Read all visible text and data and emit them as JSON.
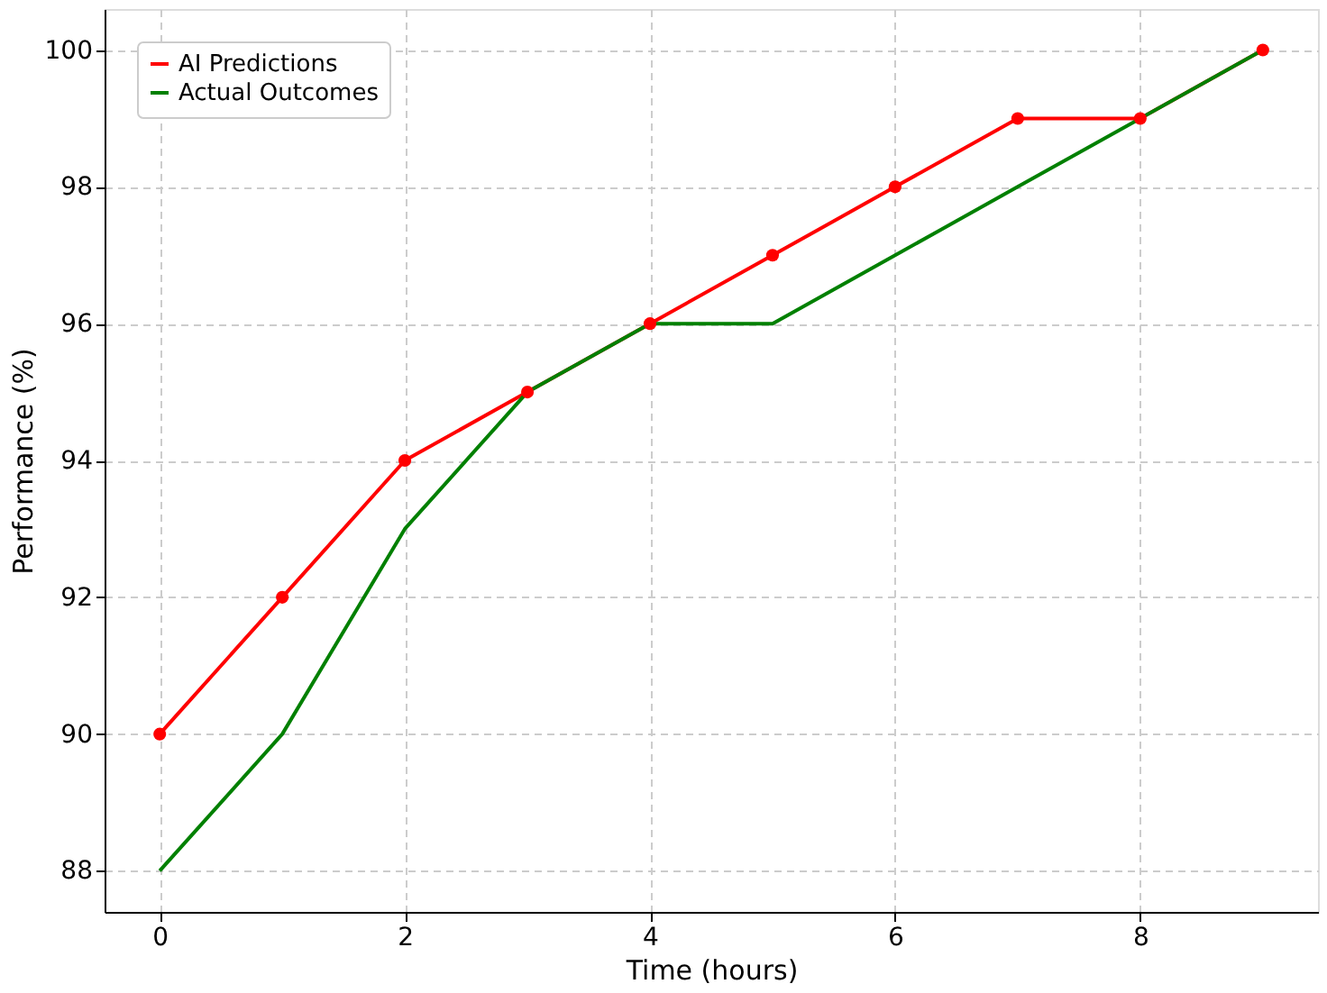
{
  "chart_data": {
    "type": "line",
    "xlabel": "Time (hours)",
    "ylabel": "Performance (%)",
    "x": [
      0,
      1,
      2,
      3,
      4,
      5,
      6,
      7,
      8,
      9
    ],
    "series": [
      {
        "name": "AI Predictions",
        "color": "#ff0000",
        "marker": "circle",
        "values": [
          90,
          92,
          94,
          95,
          96,
          97,
          98,
          99,
          99,
          100
        ]
      },
      {
        "name": "Actual Outcomes",
        "color": "#008000",
        "marker": "none",
        "values": [
          88,
          90,
          93,
          95,
          96,
          96,
          97,
          98,
          99,
          100
        ]
      }
    ],
    "xlim": [
      -0.45,
      9.45
    ],
    "ylim": [
      87.4,
      100.6
    ],
    "xticks": [
      0,
      2,
      4,
      6,
      8
    ],
    "yticks": [
      88,
      90,
      92,
      94,
      96,
      98,
      100
    ],
    "grid": true,
    "legend": "top left",
    "line_style": "solid"
  }
}
